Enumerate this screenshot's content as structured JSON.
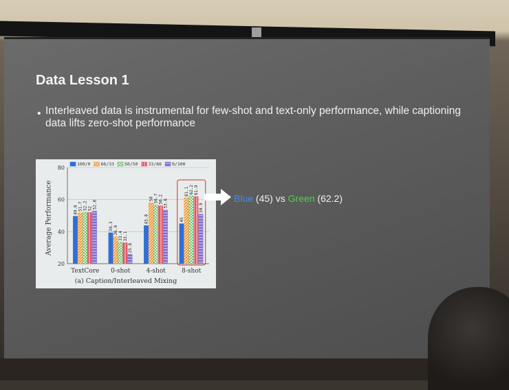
{
  "slide": {
    "title": "Data Lesson 1",
    "bullet": "Interleaved data is instrumental for few-shot and text-only performance, while captioning data lifts zero-shot performance",
    "callout": {
      "blue": "Blue",
      "blue_val": "(45)",
      "vs": "vs",
      "green": "Green",
      "green_val": "(62.2)"
    }
  },
  "chart_data": {
    "type": "bar",
    "title": "",
    "caption": "(a) Caption/Interleaved Mixing",
    "ylabel": "Average Performance",
    "xlabel": "",
    "ylim": [
      20,
      80
    ],
    "yticks": [
      20,
      40,
      60,
      80
    ],
    "categories": [
      "TextCore",
      "0-shot",
      "4-shot",
      "8-shot"
    ],
    "legend_position": "top",
    "series": [
      {
        "name": "100/0",
        "color": "#2f6fd6",
        "pattern": "solid",
        "values": [
          49.6,
          39.3,
          43.8,
          45
        ]
      },
      {
        "name": "66/33",
        "color": "#f29a3a",
        "pattern": "hatch",
        "values": [
          51.7,
          36.9,
          58,
          61.1
        ]
      },
      {
        "name": "50/50",
        "color": "#59b354",
        "pattern": "crosshatch",
        "values": [
          52.2,
          33.4,
          56.7,
          62.2
        ]
      },
      {
        "name": "33/66",
        "color": "#e0596a",
        "pattern": "vertical",
        "values": [
          52,
          33.1,
          56.2,
          61.9
        ]
      },
      {
        "name": "0/100",
        "color": "#7b6ccc",
        "pattern": "horizontal",
        "values": [
          52.8,
          25.8,
          53.6,
          50.9
        ]
      }
    ],
    "highlight_category": "8-shot"
  }
}
